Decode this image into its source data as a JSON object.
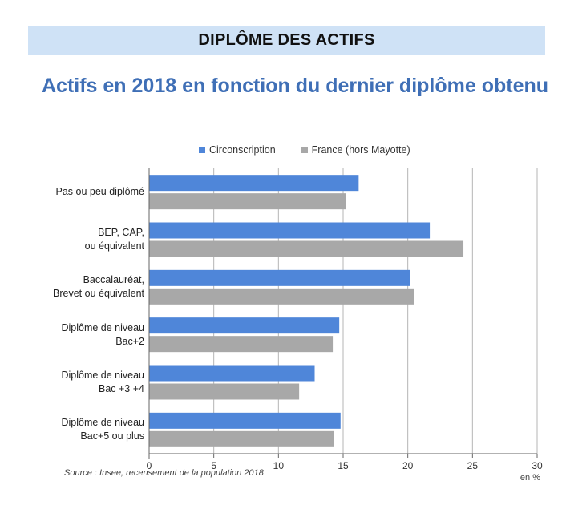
{
  "header": {
    "title": "DIPLÔME DES ACTIFS"
  },
  "chart_title": "Actifs en 2018 en fonction du dernier diplôme obtenu",
  "source": "Source : Insee, recensement de la population 2018",
  "unit_label": "en %",
  "colors": {
    "series_1": "#4f86d9",
    "series_2": "#a8a8a8",
    "header_band": "#cfe2f6",
    "title": "#3f6fb6"
  },
  "chart_data": {
    "type": "bar",
    "orientation": "horizontal",
    "title": "Actifs en 2018 en fonction du dernier diplôme obtenu",
    "xlabel": "en %",
    "ylabel": "",
    "xlim": [
      0,
      30
    ],
    "x_ticks": [
      0,
      5,
      10,
      15,
      20,
      25,
      30
    ],
    "grid": true,
    "legend_position": "top",
    "categories": [
      [
        "Pas ou peu diplômé"
      ],
      [
        "BEP, CAP,",
        "ou équivalent"
      ],
      [
        "Baccalauréat,",
        "Brevet ou équivalent"
      ],
      [
        "Diplôme de niveau",
        "Bac+2"
      ],
      [
        "Diplôme de niveau",
        "Bac +3 +4"
      ],
      [
        "Diplôme de niveau",
        "Bac+5 ou plus"
      ]
    ],
    "series": [
      {
        "name": "Circonscription",
        "values": [
          16.2,
          21.7,
          20.2,
          14.7,
          12.8,
          14.8
        ]
      },
      {
        "name": "France (hors Mayotte)",
        "values": [
          15.2,
          24.3,
          20.5,
          14.2,
          11.6,
          14.3
        ]
      }
    ]
  }
}
